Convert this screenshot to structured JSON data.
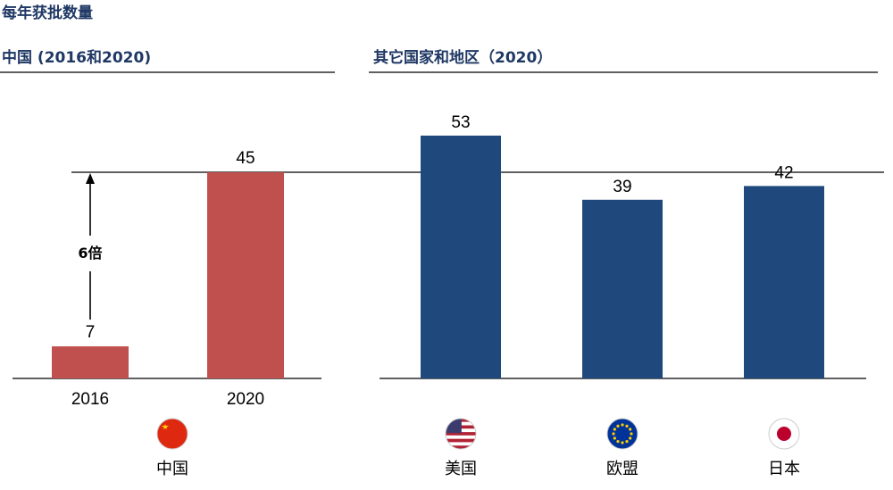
{
  "title": "每年获批数量",
  "colors": {
    "china": "#c0504d",
    "other": "#1f497d",
    "title": "#1f3864"
  },
  "chart_data": [
    {
      "type": "bar",
      "title": "中国 (2016和2020)",
      "categories": [
        "2016",
        "2020"
      ],
      "values": [
        7,
        45
      ],
      "region_label": "中国",
      "flag": "china-flag",
      "annotation": "6倍"
    },
    {
      "type": "bar",
      "title": "其它国家和地区（2020）",
      "categories": [
        "美国",
        "欧盟",
        "日本"
      ],
      "values": [
        53,
        39,
        42
      ],
      "flags": [
        "usa-flag",
        "eu-flag",
        "japan-flag"
      ]
    }
  ]
}
